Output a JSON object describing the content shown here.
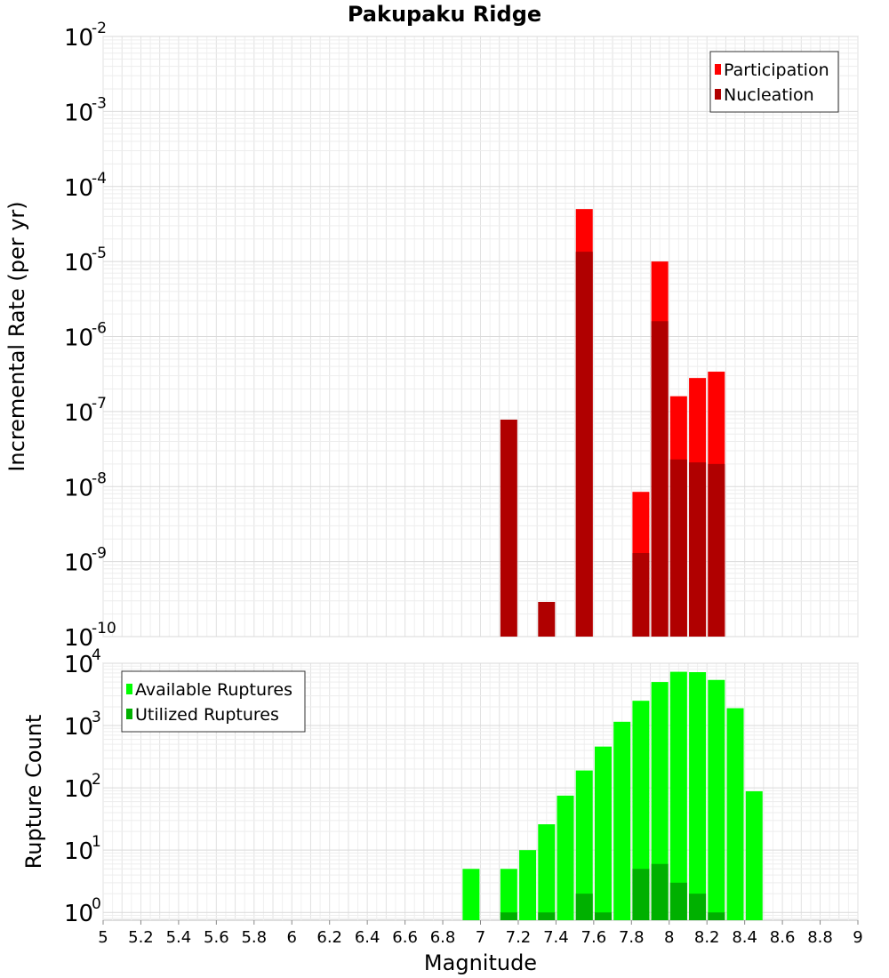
{
  "chart_data": [
    {
      "type": "bar",
      "title": "Pakupaku Ridge",
      "xlabel": "",
      "ylabel": "Incremental Rate (per yr)",
      "yscale": "log",
      "ylim": [
        1e-10,
        0.01
      ],
      "xlim": [
        5,
        9
      ],
      "grid": true,
      "legend_placement": "top-right",
      "series": [
        {
          "name": "Participation",
          "color": "#ff0000",
          "x": [
            7.55,
            7.85,
            7.95,
            8.05,
            8.15,
            8.25
          ],
          "values": [
            5e-05,
            8.5e-09,
            1e-05,
            1.6e-07,
            2.8e-07,
            3.4e-07
          ]
        },
        {
          "name": "Nucleation",
          "color": "#b00000",
          "x": [
            7.15,
            7.35,
            7.55,
            7.85,
            7.95,
            8.05,
            8.15,
            8.25
          ],
          "values": [
            7.8e-08,
            2.9e-10,
            1.35e-05,
            1.3e-09,
            1.6e-06,
            2.3e-08,
            2.1e-08,
            2e-08
          ]
        }
      ]
    },
    {
      "type": "bar",
      "title": "",
      "xlabel": "Magnitude",
      "ylabel": "Rupture Count",
      "yscale": "log",
      "ylim": [
        0.75,
        10000
      ],
      "xlim": [
        5,
        9
      ],
      "grid": true,
      "legend_placement": "top-left",
      "xticks": [
        "5",
        "5.2",
        "5.4",
        "5.6",
        "5.8",
        "6",
        "6.2",
        "6.4",
        "6.6",
        "6.8",
        "7",
        "7.2",
        "7.4",
        "7.6",
        "7.8",
        "8",
        "8.2",
        "8.4",
        "8.6",
        "8.8",
        "9"
      ],
      "series": [
        {
          "name": "Available Ruptures",
          "color": "#00ff00",
          "x": [
            6.95,
            7.15,
            7.25,
            7.35,
            7.45,
            7.55,
            7.65,
            7.75,
            7.85,
            7.95,
            8.05,
            8.15,
            8.25,
            8.35,
            8.45
          ],
          "values": [
            5,
            5,
            10,
            26,
            75,
            190,
            460,
            1150,
            2500,
            5000,
            7300,
            7200,
            5400,
            1900,
            88
          ]
        },
        {
          "name": "Utilized Ruptures",
          "color": "#00b000",
          "x": [
            7.15,
            7.35,
            7.55,
            7.65,
            7.85,
            7.95,
            8.05,
            8.15,
            8.25
          ],
          "values": [
            1,
            1,
            2,
            1,
            5,
            6,
            3,
            2,
            1
          ]
        }
      ]
    }
  ]
}
